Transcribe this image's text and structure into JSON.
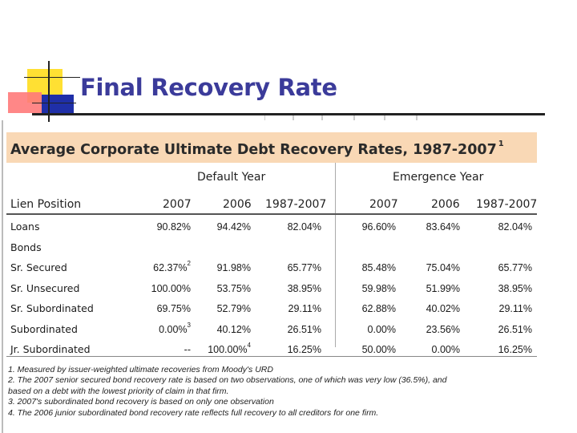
{
  "slide": {
    "title": "Final Recovery Rate"
  },
  "table": {
    "banner": {
      "title": "Average Corporate Ultimate Debt Recovery Rates, 1987-2007",
      "footnote_mark": "1"
    },
    "group_headers": [
      "Default Year",
      "Emergence Year"
    ],
    "column_headers": [
      "Lien Position",
      "2007",
      "2006",
      "1987-2007",
      "2007",
      "2006",
      "1987-2007"
    ],
    "rows": [
      {
        "label": "Loans",
        "values": [
          "90.82%",
          "94.42%",
          "82.04%",
          "96.60%",
          "83.64%",
          "82.04%"
        ],
        "marks": [
          "",
          "",
          "",
          "",
          "",
          ""
        ]
      },
      {
        "label": "Bonds",
        "values": [
          "",
          "",
          "",
          "",
          "",
          ""
        ],
        "marks": [
          "",
          "",
          "",
          "",
          "",
          ""
        ]
      },
      {
        "label": "Sr. Secured",
        "values": [
          "62.37%",
          "91.98%",
          "65.77%",
          "85.48%",
          "75.04%",
          "65.77%"
        ],
        "marks": [
          "2",
          "",
          "",
          "",
          "",
          ""
        ]
      },
      {
        "label": "Sr. Unsecured",
        "values": [
          "100.00%",
          "53.75%",
          "38.95%",
          "59.98%",
          "51.99%",
          "38.95%"
        ],
        "marks": [
          "",
          "",
          "",
          "",
          "",
          ""
        ]
      },
      {
        "label": "Sr. Subordinated",
        "values": [
          "69.75%",
          "52.79%",
          "29.11%",
          "62.88%",
          "40.02%",
          "29.11%"
        ],
        "marks": [
          "",
          "",
          "",
          "",
          "",
          ""
        ]
      },
      {
        "label": "Subordinated",
        "values": [
          "0.00%",
          "40.12%",
          "26.51%",
          "0.00%",
          "23.56%",
          "26.51%"
        ],
        "marks": [
          "3",
          "",
          "",
          "",
          "",
          ""
        ]
      },
      {
        "label": "Jr. Subordinated",
        "values": [
          "--",
          "100.00%",
          "16.25%",
          "50.00%",
          "0.00%",
          "16.25%"
        ],
        "marks": [
          "",
          "4",
          "",
          "",
          "",
          ""
        ]
      }
    ],
    "notes": [
      "1. Measured by issuer-weighted ultimate recoveries from Moody's URD",
      "2. The 2007 senior secured bond recovery rate is based on two observations, one of which was very low (36.5%), and",
      "based on a debt with the lowest priority of claim in that firm.",
      "3. 2007's subordinated bond recovery is based on only one observation",
      "4. The 2006 junior subordinated bond recovery rate reflects full recovery to all creditors for one firm."
    ]
  },
  "colors": {
    "title": "#3b3b9a",
    "banner": "#f9d8b5",
    "deco_yellow": "#ffd700",
    "deco_red": "#ff6666",
    "deco_blue": "#2222aa"
  }
}
